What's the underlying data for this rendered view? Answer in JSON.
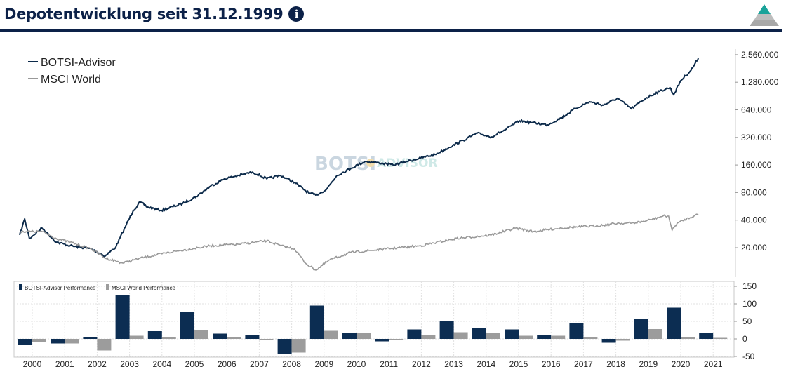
{
  "header": {
    "title": "Depotentwicklung seit 31.12.1999",
    "info_icon": "info-icon"
  },
  "watermark": {
    "brand": "BOTSI ADVISOR"
  },
  "chart_data": [
    {
      "type": "line",
      "title": "Depotentwicklung seit 31.12.1999",
      "yscale": "log2",
      "ylim": [
        12000,
        2800000
      ],
      "xlim": [
        2000.0,
        2021.5
      ],
      "yticks": [
        "20.000",
        "40.000",
        "80.000",
        "160.000",
        "320.000",
        "640.000",
        "1.280.000",
        "2.560.000"
      ],
      "ytick_values": [
        20000,
        40000,
        80000,
        160000,
        320000,
        640000,
        1280000,
        2560000
      ],
      "legend_position": "top-left",
      "series": [
        {
          "name": "BOTSI-Advisor",
          "color": "#0c2a4a",
          "points": [
            [
              2000.0,
              27500
            ],
            [
              2000.16,
              41200
            ],
            [
              2000.31,
              25200
            ],
            [
              2000.71,
              32800
            ],
            [
              2001.16,
              23000
            ],
            [
              2001.6,
              21000
            ],
            [
              2002.27,
              19400
            ],
            [
              2002.71,
              16200
            ],
            [
              2003.05,
              20400
            ],
            [
              2003.38,
              35800
            ],
            [
              2003.6,
              51000
            ],
            [
              2003.82,
              63000
            ],
            [
              2004.05,
              55600
            ],
            [
              2004.49,
              51000
            ],
            [
              2005.16,
              60700
            ],
            [
              2005.6,
              72500
            ],
            [
              2006.05,
              94000
            ],
            [
              2006.49,
              113000
            ],
            [
              2006.94,
              123000
            ],
            [
              2007.38,
              134000
            ],
            [
              2007.83,
              113000
            ],
            [
              2008.27,
              123000
            ],
            [
              2008.71,
              103000
            ],
            [
              2009.16,
              79000
            ],
            [
              2009.38,
              75000
            ],
            [
              2009.71,
              86000
            ],
            [
              2010.05,
              123000
            ],
            [
              2010.49,
              147000
            ],
            [
              2010.94,
              175000
            ],
            [
              2011.38,
              169000
            ],
            [
              2011.83,
              160000
            ],
            [
              2012.27,
              175000
            ],
            [
              2012.71,
              191000
            ],
            [
              2013.16,
              208000
            ],
            [
              2013.6,
              249000
            ],
            [
              2014.05,
              297000
            ],
            [
              2014.49,
              355000
            ],
            [
              2014.94,
              324000
            ],
            [
              2015.38,
              386000
            ],
            [
              2015.83,
              486000
            ],
            [
              2016.27,
              462000
            ],
            [
              2016.72,
              438000
            ],
            [
              2017.16,
              523000
            ],
            [
              2017.6,
              658000
            ],
            [
              2018.05,
              784000
            ],
            [
              2018.5,
              720000
            ],
            [
              2018.94,
              856000
            ],
            [
              2019.38,
              658000
            ],
            [
              2019.83,
              856000
            ],
            [
              2020.27,
              1020000
            ],
            [
              2020.6,
              1120000
            ],
            [
              2020.72,
              936000
            ],
            [
              2020.94,
              1330000
            ],
            [
              2021.27,
              1730000
            ],
            [
              2021.5,
              2340000
            ]
          ]
        },
        {
          "name": "MSCI World",
          "color": "#999999",
          "points": [
            [
              2000.0,
              30000
            ],
            [
              2000.71,
              30000
            ],
            [
              2001.16,
              25200
            ],
            [
              2001.6,
              23000
            ],
            [
              2002.27,
              19400
            ],
            [
              2002.71,
              15400
            ],
            [
              2003.27,
              13600
            ],
            [
              2003.82,
              15400
            ],
            [
              2004.94,
              18300
            ],
            [
              2006.05,
              21000
            ],
            [
              2006.94,
              21800
            ],
            [
              2007.83,
              23800
            ],
            [
              2008.27,
              21000
            ],
            [
              2008.71,
              19400
            ],
            [
              2009.05,
              13600
            ],
            [
              2009.38,
              11400
            ],
            [
              2009.83,
              14800
            ],
            [
              2010.49,
              17700
            ],
            [
              2011.6,
              19400
            ],
            [
              2012.71,
              21000
            ],
            [
              2013.83,
              25200
            ],
            [
              2014.94,
              27500
            ],
            [
              2015.72,
              32800
            ],
            [
              2016.27,
              30000
            ],
            [
              2017.16,
              32800
            ],
            [
              2018.27,
              34600
            ],
            [
              2018.94,
              37000
            ],
            [
              2019.38,
              37000
            ],
            [
              2019.83,
              39100
            ],
            [
              2020.38,
              44200
            ],
            [
              2020.56,
              44200
            ],
            [
              2020.67,
              31000
            ],
            [
              2020.83,
              37000
            ],
            [
              2021.38,
              45000
            ],
            [
              2021.5,
              46600
            ]
          ]
        }
      ]
    },
    {
      "type": "bar",
      "categories": [
        "2000",
        "2001",
        "2002",
        "2003",
        "2004",
        "2005",
        "2006",
        "2007",
        "2008",
        "2009",
        "2010",
        "2011",
        "2012",
        "2013",
        "2014",
        "2015",
        "2016",
        "2017",
        "2018",
        "2019",
        "2020",
        "2021"
      ],
      "ylim": [
        -50,
        150
      ],
      "yticks": [
        "-50",
        "0",
        "50",
        "100",
        "150"
      ],
      "ytick_values": [
        -50,
        0,
        50,
        100,
        150
      ],
      "grid": true,
      "legend_position": "top-left",
      "series": [
        {
          "name": "BOTSI-Advisor Performance",
          "color": "#0c2d52",
          "values": [
            -17,
            -13,
            5,
            124,
            22,
            76,
            15,
            10,
            -43,
            95,
            17,
            -7,
            27,
            52,
            31,
            27,
            10,
            45,
            -11,
            57,
            89,
            16
          ]
        },
        {
          "name": "MSCI World Performance",
          "color": "#9c9c9c",
          "values": [
            -8,
            -13,
            -33,
            9,
            5,
            24,
            5,
            -3,
            -39,
            23,
            17,
            -3,
            12,
            19,
            17,
            9,
            9,
            6,
            -5,
            28,
            5,
            3
          ]
        }
      ]
    }
  ]
}
